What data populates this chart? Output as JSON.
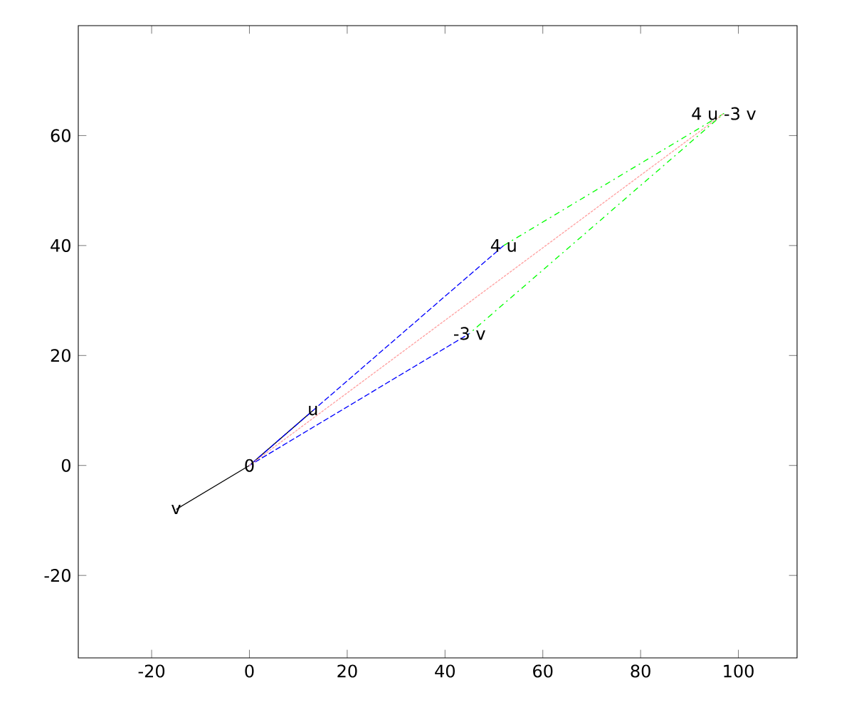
{
  "chart_data": {
    "type": "line",
    "xlim": [
      -35,
      112
    ],
    "ylim": [
      -35,
      80
    ],
    "xticks": [
      -20,
      0,
      20,
      40,
      60,
      80,
      100
    ],
    "yticks": [
      -20,
      0,
      20,
      40,
      60
    ],
    "grid": false,
    "marker": "none",
    "series": [
      {
        "color": "#000000",
        "line_style": "solid",
        "x": [
          -15,
          0,
          13
        ],
        "values": [
          -8,
          0,
          10
        ]
      },
      {
        "color": "#0000ff",
        "line_style": "dashed",
        "x": [
          52,
          0,
          45
        ],
        "values": [
          40,
          0,
          24
        ]
      },
      {
        "color": "#00ff00",
        "line_style": "dashdot",
        "x": [
          52,
          97,
          45
        ],
        "values": [
          40,
          64,
          24
        ]
      },
      {
        "color": "#ffa0a0",
        "line_style": "dotted",
        "x": [
          0,
          97
        ],
        "values": [
          0,
          64
        ]
      }
    ],
    "annotations": [
      {
        "text": "0",
        "x": 0,
        "y": 0
      },
      {
        "text": "u",
        "x": 13,
        "y": 10
      },
      {
        "text": "v",
        "x": -15,
        "y": -8
      },
      {
        "text": "4 u",
        "x": 52,
        "y": 40
      },
      {
        "text": "-3 v",
        "x": 45,
        "y": 24
      },
      {
        "text": "4 u -3 v",
        "x": 97,
        "y": 64
      }
    ]
  }
}
